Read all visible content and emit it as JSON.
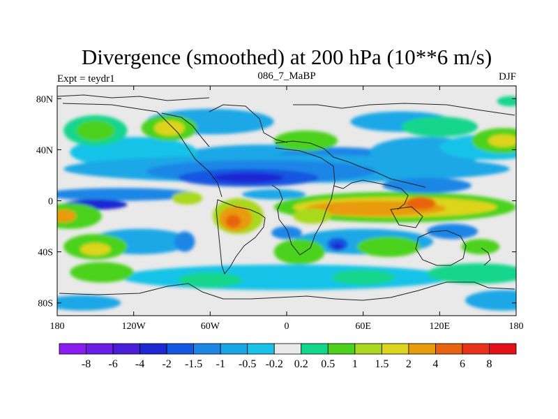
{
  "chart_data": {
    "type": "heatmap",
    "title": "Divergence (smoothed) at 200 hPa (10**6 m/s)",
    "left_string": "Expt = teydr1",
    "center_string": "086_7_MaBP",
    "right_string": "DJF",
    "x_ticks": [
      "180",
      "120W",
      "60W",
      "0",
      "60E",
      "120E",
      "180"
    ],
    "x_tick_values": [
      -180,
      -120,
      -60,
      0,
      60,
      120,
      180
    ],
    "y_ticks": [
      "80N",
      "40N",
      "0",
      "40S",
      "80S"
    ],
    "y_tick_values": [
      80,
      40,
      0,
      -40,
      -80
    ],
    "xlim": [
      -180,
      180
    ],
    "ylim": [
      -90,
      90
    ],
    "colorbar": {
      "levels": [
        "-8",
        "-6",
        "-4",
        "-2",
        "-1.5",
        "-1",
        "-0.5",
        "-0.2",
        "0.2",
        "0.5",
        "1",
        "1.5",
        "2",
        "4",
        "6",
        "8"
      ],
      "colors": [
        "#8A1EF0",
        "#6B1FE6",
        "#4A1ED8",
        "#1E28D2",
        "#1457E0",
        "#1F86E6",
        "#1AA7E6",
        "#19C3E8",
        "#E9E9E9",
        "#12D68C",
        "#4CD21C",
        "#A8D91F",
        "#DDD41D",
        "#E89B0D",
        "#E8630F",
        "#E8321A",
        "#E5111A"
      ]
    },
    "regions": [
      {
        "lon": -20,
        "lat": 30,
        "rx": 75,
        "ry": 14,
        "bin": 6
      },
      {
        "lon": -10,
        "lat": 28,
        "rx": 45,
        "ry": 8,
        "bin": 4
      },
      {
        "lon": 40,
        "lat": 30,
        "rx": 55,
        "ry": 12,
        "bin": 5
      },
      {
        "lon": 110,
        "lat": 38,
        "rx": 45,
        "ry": 12,
        "bin": 6
      },
      {
        "lon": -120,
        "lat": 38,
        "rx": 50,
        "ry": 12,
        "bin": 7
      },
      {
        "lon": 160,
        "lat": 42,
        "rx": 40,
        "ry": 10,
        "bin": 7
      },
      {
        "lon": -60,
        "lat": 62,
        "rx": 50,
        "ry": 10,
        "bin": 6
      },
      {
        "lon": 90,
        "lat": 62,
        "rx": 40,
        "ry": 8,
        "bin": 6
      },
      {
        "lon": -130,
        "lat": 5,
        "rx": 60,
        "ry": 5,
        "bin": 5
      },
      {
        "lon": -150,
        "lat": -3,
        "rx": 25,
        "ry": 4,
        "bin": 3
      },
      {
        "lon": -10,
        "lat": 5,
        "rx": 25,
        "ry": 4,
        "bin": 6
      },
      {
        "lon": -115,
        "lat": -32,
        "rx": 40,
        "ry": 10,
        "bin": 6
      },
      {
        "lon": 60,
        "lat": -32,
        "rx": 55,
        "ry": 10,
        "bin": 6
      },
      {
        "lon": 0,
        "lat": -60,
        "rx": 130,
        "ry": 10,
        "bin": 7
      },
      {
        "lon": -160,
        "lat": -80,
        "rx": 30,
        "ry": 6,
        "bin": 6
      },
      {
        "lon": 170,
        "lat": -78,
        "rx": 30,
        "ry": 8,
        "bin": 6
      },
      {
        "lon": -150,
        "lat": 55,
        "rx": 25,
        "ry": 12,
        "bin": 9
      },
      {
        "lon": -150,
        "lat": 55,
        "rx": 15,
        "ry": 8,
        "bin": 10
      },
      {
        "lon": -92,
        "lat": 57,
        "rx": 22,
        "ry": 10,
        "bin": 10
      },
      {
        "lon": -92,
        "lat": 57,
        "rx": 12,
        "ry": 6,
        "bin": 12
      },
      {
        "lon": 170,
        "lat": 47,
        "rx": 25,
        "ry": 10,
        "bin": 10
      },
      {
        "lon": 170,
        "lat": 47,
        "rx": 12,
        "ry": 5,
        "bin": 12
      },
      {
        "lon": 15,
        "lat": 47,
        "rx": 25,
        "ry": 8,
        "bin": 10
      },
      {
        "lon": 120,
        "lat": 58,
        "rx": 30,
        "ry": 8,
        "bin": 9
      },
      {
        "lon": 175,
        "lat": 78,
        "rx": 10,
        "ry": 4,
        "bin": 9
      },
      {
        "lon": -170,
        "lat": -12,
        "rx": 25,
        "ry": 10,
        "bin": 10
      },
      {
        "lon": -175,
        "lat": -12,
        "rx": 10,
        "ry": 5,
        "bin": 13
      },
      {
        "lon": -150,
        "lat": -36,
        "rx": 25,
        "ry": 10,
        "bin": 10
      },
      {
        "lon": -150,
        "lat": -38,
        "rx": 12,
        "ry": 5,
        "bin": 12
      },
      {
        "lon": -145,
        "lat": -56,
        "rx": 25,
        "ry": 8,
        "bin": 10
      },
      {
        "lon": 85,
        "lat": -5,
        "rx": 95,
        "ry": 12,
        "bin": 10
      },
      {
        "lon": 85,
        "lat": -5,
        "rx": 80,
        "ry": 8,
        "bin": 12
      },
      {
        "lon": 70,
        "lat": -6,
        "rx": 55,
        "ry": 6,
        "bin": 13
      },
      {
        "lon": 105,
        "lat": -2,
        "rx": 12,
        "ry": 5,
        "bin": 14
      },
      {
        "lon": -38,
        "lat": -12,
        "rx": 20,
        "ry": 14,
        "bin": 11
      },
      {
        "lon": -40,
        "lat": -14,
        "rx": 13,
        "ry": 10,
        "bin": 13
      },
      {
        "lon": -42,
        "lat": -16,
        "rx": 6,
        "ry": 5,
        "bin": 14
      },
      {
        "lon": -78,
        "lat": 2,
        "rx": 12,
        "ry": 5,
        "bin": 11
      },
      {
        "lon": 20,
        "lat": -12,
        "rx": 15,
        "ry": 6,
        "bin": 11
      },
      {
        "lon": 10,
        "lat": -40,
        "rx": 20,
        "ry": 10,
        "bin": 10
      },
      {
        "lon": 80,
        "lat": -36,
        "rx": 25,
        "ry": 8,
        "bin": 10
      },
      {
        "lon": 152,
        "lat": -36,
        "rx": 15,
        "ry": 6,
        "bin": 10
      },
      {
        "lon": 150,
        "lat": -57,
        "rx": 40,
        "ry": 8,
        "bin": 9
      },
      {
        "lon": -60,
        "lat": -62,
        "rx": 25,
        "ry": 6,
        "bin": 9
      },
      {
        "lon": 60,
        "lat": -60,
        "rx": 25,
        "ry": 6,
        "bin": 9
      },
      {
        "lon": 0,
        "lat": 25,
        "rx": 175,
        "ry": 11,
        "bin": 6
      },
      {
        "lon": -20,
        "lat": 23,
        "rx": 90,
        "ry": 9,
        "bin": 5
      },
      {
        "lon": -30,
        "lat": 18,
        "rx": 55,
        "ry": 7,
        "bin": 4
      },
      {
        "lon": -30,
        "lat": 18,
        "rx": 28,
        "ry": 4,
        "bin": 3
      },
      {
        "lon": 110,
        "lat": 12,
        "rx": 35,
        "ry": 6,
        "bin": 5
      },
      {
        "lon": -80,
        "lat": -32,
        "rx": 8,
        "ry": 8,
        "bin": 5
      },
      {
        "lon": 40,
        "lat": -34,
        "rx": 8,
        "ry": 5,
        "bin": 4
      },
      {
        "lon": 40,
        "lat": -36,
        "rx": 4,
        "ry": 3,
        "bin": 3
      },
      {
        "lon": 0,
        "lat": -25,
        "rx": 12,
        "ry": 5,
        "bin": 5
      },
      {
        "lon": 130,
        "lat": -24,
        "rx": 20,
        "ry": 6,
        "bin": 5
      }
    ]
  }
}
